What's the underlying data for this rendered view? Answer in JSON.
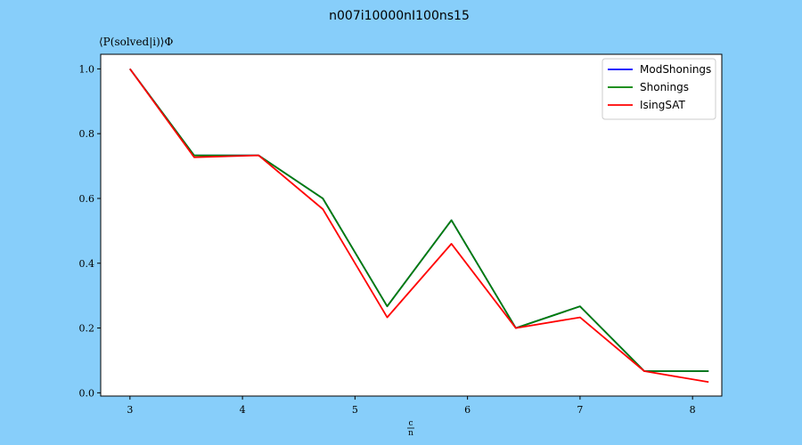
{
  "chart_data": {
    "type": "line",
    "title": "n007i10000nI100ns15",
    "ylabel": "⟨P(solved|i)⟩Φ",
    "xlabel_num": "c",
    "xlabel_den": "n",
    "xlim": [
      2.74,
      8.26
    ],
    "ylim": [
      -0.01,
      1.045
    ],
    "xticks": [
      3,
      4,
      5,
      6,
      7,
      8
    ],
    "yticks": [
      0.0,
      0.2,
      0.4,
      0.6,
      0.8,
      1.0
    ],
    "legend_position": "top-right",
    "x": [
      3.0,
      3.571,
      4.143,
      4.714,
      5.286,
      5.857,
      6.429,
      7.0,
      7.571,
      8.143
    ],
    "series": [
      {
        "name": "ModShonings",
        "color": "#0000ff",
        "values": [
          1.0,
          0.733,
          0.733,
          0.6,
          0.267,
          0.533,
          0.2,
          0.267,
          0.067,
          0.067
        ]
      },
      {
        "name": "Shonings",
        "color": "#008000",
        "values": [
          1.0,
          0.733,
          0.733,
          0.6,
          0.267,
          0.533,
          0.2,
          0.267,
          0.067,
          0.067
        ]
      },
      {
        "name": "IsingSAT",
        "color": "#ff0000",
        "values": [
          1.0,
          0.727,
          0.733,
          0.567,
          0.233,
          0.46,
          0.2,
          0.233,
          0.067,
          0.033
        ]
      }
    ]
  }
}
